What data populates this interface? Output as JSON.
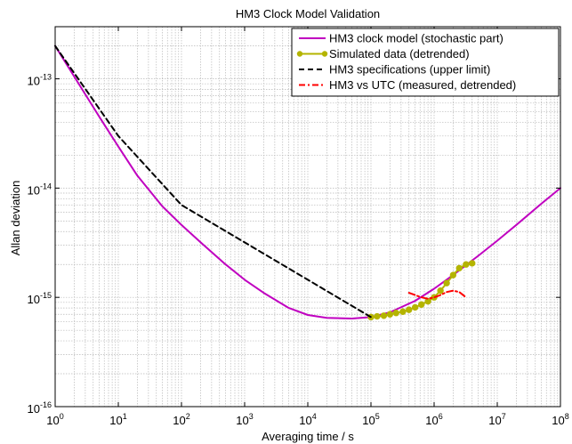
{
  "chart_data": {
    "type": "line",
    "title": "HM3 Clock Model Validation",
    "xlabel": "Averaging time / s",
    "ylabel": "Allan deviation",
    "x_scale": "log",
    "y_scale": "log",
    "xlim": [
      1,
      100000000
    ],
    "ylim": [
      1e-16,
      3e-13
    ],
    "grid": true,
    "legend_position": "top-right",
    "x_ticks": [
      {
        "base": "10",
        "exp": "0",
        "value": 1
      },
      {
        "base": "10",
        "exp": "1",
        "value": 10
      },
      {
        "base": "10",
        "exp": "2",
        "value": 100
      },
      {
        "base": "10",
        "exp": "3",
        "value": 1000
      },
      {
        "base": "10",
        "exp": "4",
        "value": 10000
      },
      {
        "base": "10",
        "exp": "5",
        "value": 100000
      },
      {
        "base": "10",
        "exp": "6",
        "value": 1000000
      },
      {
        "base": "10",
        "exp": "7",
        "value": 10000000
      },
      {
        "base": "10",
        "exp": "8",
        "value": 100000000
      }
    ],
    "y_ticks": [
      {
        "base": "10",
        "exp": "-16",
        "value": 1e-16
      },
      {
        "base": "10",
        "exp": "-15",
        "value": 1e-15
      },
      {
        "base": "10",
        "exp": "-14",
        "value": 1e-14
      },
      {
        "base": "10",
        "exp": "-13",
        "value": 1e-13
      }
    ],
    "series": [
      {
        "name": "HM3 clock model (stochastic part)",
        "color": "#c000c0",
        "style": "solid",
        "marker": "none",
        "x": [
          1,
          2,
          5,
          10,
          20,
          50,
          100,
          200,
          500,
          1000,
          2000,
          5000,
          10000,
          20000,
          50000,
          100000,
          200000,
          500000,
          1000000,
          2000000,
          5000000,
          10000000,
          20000000,
          50000000,
          100000000
        ],
        "y": [
          2e-13,
          1.05e-13,
          4.5e-14,
          2.4e-14,
          1.3e-14,
          6.8e-15,
          4.6e-15,
          3.2e-15,
          2e-15,
          1.45e-15,
          1.1e-15,
          8e-16,
          6.9e-16,
          6.5e-16,
          6.4e-16,
          6.6e-16,
          7.3e-16,
          9.3e-16,
          1.2e-15,
          1.6e-15,
          2.4e-15,
          3.3e-15,
          4.6e-15,
          7.2e-15,
          1e-14
        ]
      },
      {
        "name": "Simulated data (detrended)",
        "color": "#b4b400",
        "style": "solid",
        "marker": "circle",
        "x": [
          100000,
          125000,
          160000,
          200000,
          250000,
          320000,
          400000,
          500000,
          630000,
          800000,
          1000000,
          1260000,
          1580000,
          2000000,
          2500000,
          3200000,
          4000000
        ],
        "y": [
          6.6e-16,
          6.7e-16,
          6.8e-16,
          7e-16,
          7.2e-16,
          7.4e-16,
          7.7e-16,
          8.1e-16,
          8.6e-16,
          9.2e-16,
          1e-15,
          1.15e-15,
          1.35e-15,
          1.6e-15,
          1.85e-15,
          2e-15,
          2.05e-15
        ]
      },
      {
        "name": "HM3 specifications (upper limit)",
        "color": "#000000",
        "style": "dashed",
        "marker": "none",
        "x": [
          1,
          10,
          100,
          100000
        ],
        "y": [
          2e-13,
          3e-14,
          7e-15,
          6.6e-16
        ]
      },
      {
        "name": "HM3 vs UTC (measured, detrended)",
        "color": "#ff0000",
        "style": "dashdot",
        "marker": "none",
        "x": [
          400000,
          500000,
          630000,
          800000,
          1000000,
          1260000,
          1580000,
          2000000,
          2500000,
          3200000
        ],
        "y": [
          1.1e-15,
          1.05e-15,
          1e-15,
          9.7e-16,
          1e-15,
          1.05e-15,
          1.12e-15,
          1.15e-15,
          1.12e-15,
          1e-15
        ]
      }
    ]
  }
}
